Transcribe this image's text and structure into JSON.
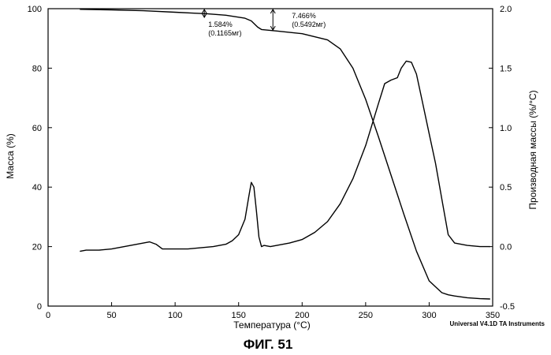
{
  "figure_caption": "ФИГ. 51",
  "instrument_credit": "Universal V4.1D TA Instruments",
  "chart_data": {
    "type": "line",
    "xlabel": "Температура (°C)",
    "ylabel_left": "Масса (%)",
    "ylabel_right": "Производная массы (%/°C)",
    "xlim": [
      0,
      350
    ],
    "ylim_left": [
      0,
      100
    ],
    "ylim_right": [
      -0.5,
      2.0
    ],
    "x_ticks": [
      0,
      50,
      100,
      150,
      200,
      250,
      300,
      350
    ],
    "y_left_ticks": [
      0,
      20,
      40,
      60,
      80,
      100
    ],
    "y_right_ticks": [
      "-0.5",
      "0.0",
      "0.5",
      "1.0",
      "1.5",
      "2.0"
    ],
    "grid": false,
    "series": [
      {
        "axis": "left",
        "x": [
          25,
          50,
          75,
          100,
          115,
          125,
          140,
          155,
          160,
          165,
          168,
          172,
          180,
          200,
          220,
          230,
          240,
          250,
          260,
          270,
          280,
          290,
          300,
          310,
          315,
          320,
          330,
          340,
          348
        ],
        "y": [
          99.8,
          99.6,
          99.3,
          98.8,
          98.5,
          98.3,
          97.8,
          96.8,
          95.9,
          93.8,
          93.0,
          92.8,
          92.5,
          91.6,
          89.5,
          86.5,
          80.0,
          69.5,
          57.0,
          44.0,
          31.0,
          18.5,
          8.5,
          4.5,
          3.8,
          3.4,
          2.8,
          2.5,
          2.4
        ]
      },
      {
        "axis": "right",
        "x": [
          25,
          30,
          40,
          50,
          60,
          70,
          80,
          85,
          90,
          100,
          110,
          120,
          130,
          140,
          145,
          150,
          155,
          158,
          160,
          162,
          164,
          166,
          168,
          170,
          175,
          180,
          190,
          200,
          210,
          220,
          230,
          240,
          250,
          260,
          265,
          270,
          275,
          278,
          282,
          286,
          290,
          295,
          300,
          305,
          310,
          315,
          320,
          330,
          340,
          348
        ],
        "y": [
          -0.04,
          -0.03,
          -0.03,
          -0.02,
          0.0,
          0.02,
          0.04,
          0.02,
          -0.02,
          -0.02,
          -0.02,
          -0.01,
          0.0,
          0.02,
          0.05,
          0.1,
          0.23,
          0.42,
          0.54,
          0.5,
          0.3,
          0.08,
          0.0,
          0.01,
          0.0,
          0.01,
          0.03,
          0.06,
          0.12,
          0.21,
          0.36,
          0.57,
          0.85,
          1.2,
          1.37,
          1.4,
          1.42,
          1.5,
          1.56,
          1.55,
          1.45,
          1.2,
          0.95,
          0.7,
          0.4,
          0.1,
          0.03,
          0.01,
          0.0,
          0.0
        ]
      }
    ],
    "annotations": [
      {
        "x": 123,
        "percent": "1.584%",
        "mass": "(0.1165мг)"
      },
      {
        "x": 177,
        "percent": "7.466%",
        "mass": "(0.5492мг)"
      }
    ]
  }
}
